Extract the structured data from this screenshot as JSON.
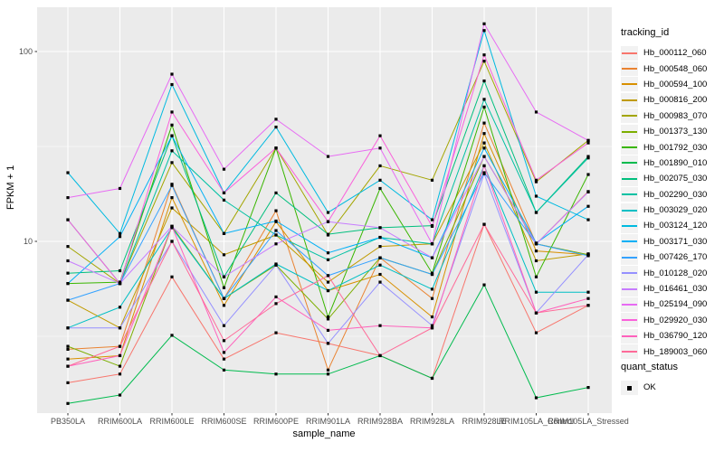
{
  "figure": {
    "y_axis_title": "FPKM + 1",
    "x_axis_title": "sample_name",
    "legend1_title": "tracking_id",
    "legend2_title": "quant_status",
    "quant_status_label": "OK",
    "panel_bg": "#EBEBEB",
    "grid_color": "#FFFFFF",
    "tick_label_color": "#4D4D4D",
    "point_color": "#000000"
  },
  "chart_data": {
    "type": "line",
    "title": "",
    "xlabel": "sample_name",
    "ylabel": "FPKM + 1",
    "y_scale": "log10",
    "y_tick_labels": [
      "10",
      "100"
    ],
    "y_tick_values": [
      10,
      100
    ],
    "y_minor_values": [
      3.162,
      31.62
    ],
    "ylim": [
      1.1,
      160
    ],
    "legend_position": "right",
    "grid": true,
    "categories": [
      "PB350LA",
      "RRIM600LA",
      "RRIM600LE",
      "RRIM600SE",
      "RRIM600PE",
      "RRIM901LA",
      "RRIM928BA",
      "RRIM928LA",
      "RRIM928LE",
      "RRIM105LA_Control",
      "RRIM105LA_Stressed"
    ],
    "series": [
      {
        "name": "Hb_000112_060",
        "color": "#F8766D",
        "values": [
          1.8,
          2.0,
          6.5,
          2.4,
          3.3,
          2.9,
          2.5,
          1.9,
          12.3,
          3.3,
          4.6
        ]
      },
      {
        "name": "Hb_000548_060",
        "color": "#EA8331",
        "values": [
          2.7,
          2.8,
          20,
          5.0,
          14.5,
          2.1,
          8.2,
          5.0,
          42,
          9.7,
          18.3
        ]
      },
      {
        "name": "Hb_000594_100",
        "color": "#D89000",
        "values": [
          2.4,
          2.5,
          17,
          4.6,
          12.7,
          5.5,
          6.7,
          4.0,
          37,
          8.9,
          8.5
        ]
      },
      {
        "name": "Hb_000816_200",
        "color": "#C09B00",
        "values": [
          4.9,
          3.5,
          15,
          8.5,
          10.8,
          6.1,
          9.4,
          9.7,
          33,
          7.9,
          8.6
        ]
      },
      {
        "name": "Hb_000983_070",
        "color": "#A3A500",
        "values": [
          9.4,
          6.0,
          26,
          11,
          31,
          10.8,
          25,
          21,
          89,
          20.6,
          34
        ]
      },
      {
        "name": "Hb_001373_130",
        "color": "#7CAE00",
        "values": [
          2.8,
          2.2,
          12,
          5.0,
          7.5,
          3.9,
          8.2,
          6.7,
          28,
          9.7,
          8.5
        ]
      },
      {
        "name": "Hb_001792_030",
        "color": "#39B600",
        "values": [
          6.0,
          6.1,
          41,
          5.7,
          31,
          4.0,
          19,
          6.8,
          51,
          6.5,
          22.5
        ]
      },
      {
        "name": "Hb_001890_010",
        "color": "#00BB4E",
        "values": [
          1.4,
          1.55,
          3.2,
          2.1,
          2.0,
          2.0,
          2.5,
          1.9,
          5.9,
          1.5,
          1.7
        ]
      },
      {
        "name": "Hb_002075_030",
        "color": "#00BF7D",
        "values": [
          6.8,
          7.0,
          36,
          6.5,
          18,
          10.9,
          11.8,
          12.1,
          70,
          14.2,
          28
        ]
      },
      {
        "name": "Hb_002290_030",
        "color": "#00C1A3",
        "values": [
          13,
          6.0,
          30,
          16.5,
          10.8,
          8.0,
          10.5,
          9.7,
          56,
          14.2,
          27.5
        ]
      },
      {
        "name": "Hb_003029_020",
        "color": "#00BFC4",
        "values": [
          3.5,
          4.5,
          11.8,
          5.0,
          7.6,
          5.5,
          7.5,
          5.6,
          25,
          5.4,
          5.4
        ]
      },
      {
        "name": "Hb_003124_120",
        "color": "#00BAE0",
        "values": [
          23,
          11,
          67,
          18,
          40,
          14.2,
          21,
          13,
          129,
          17.3,
          13
        ]
      },
      {
        "name": "Hb_003171_030",
        "color": "#00B0F6",
        "values": [
          6.0,
          10.6,
          36,
          11,
          12.8,
          8.7,
          10.5,
          8.2,
          31,
          9.8,
          15.3
        ]
      },
      {
        "name": "Hb_007426_170",
        "color": "#35A2FF",
        "values": [
          4.9,
          6.0,
          19.7,
          5.0,
          11.4,
          6.6,
          8.2,
          6.7,
          23,
          9.7,
          8.4
        ]
      },
      {
        "name": "Hb_010128_020",
        "color": "#9590FF",
        "values": [
          3.5,
          3.5,
          10,
          3.6,
          7.5,
          2.9,
          6.1,
          3.6,
          22.7,
          4.2,
          8.5
        ]
      },
      {
        "name": "Hb_016461_030",
        "color": "#C77CFF",
        "values": [
          7.9,
          6.0,
          12,
          6.5,
          9.7,
          12.7,
          11.8,
          8.2,
          28,
          9.7,
          18.2
        ]
      },
      {
        "name": "Hb_025194_090",
        "color": "#E76BF3",
        "values": [
          17,
          19,
          76,
          24,
          44,
          28,
          31,
          9.7,
          140,
          48,
          34
        ]
      },
      {
        "name": "Hb_029920_030",
        "color": "#FA62DB",
        "values": [
          13,
          6.0,
          48,
          18,
          31,
          12.7,
          36,
          12,
          96,
          21,
          33
        ]
      },
      {
        "name": "Hb_036790_120",
        "color": "#FF62BC",
        "values": [
          2.2,
          2.5,
          12,
          2.6,
          5.1,
          3.4,
          3.6,
          3.5,
          25,
          4.2,
          5.0
        ]
      },
      {
        "name": "Hb_189003_060",
        "color": "#FF6A98",
        "values": [
          2.2,
          2.8,
          10,
          3.0,
          4.7,
          6.6,
          2.5,
          3.5,
          12.3,
          4.2,
          4.6
        ]
      }
    ],
    "quant_status_series": [
      {
        "name": "OK",
        "marker": "black-square"
      }
    ]
  }
}
